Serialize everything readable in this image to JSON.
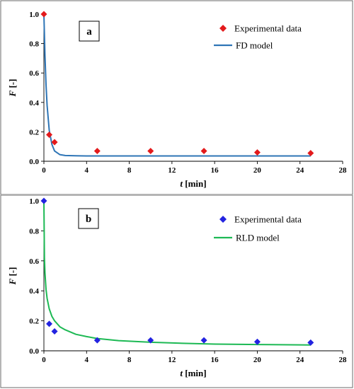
{
  "chart_data": [
    {
      "type": "scatter",
      "panel_label": "a",
      "xlabel_var": "t",
      "xlabel_unit": "[min]",
      "ylabel_var": "F",
      "ylabel_unit": "[-]",
      "xlim": [
        0,
        28
      ],
      "ylim": [
        0,
        1.0
      ],
      "xticks": [
        "0",
        "4",
        "8",
        "12",
        "16",
        "20",
        "24",
        "28"
      ],
      "yticks": [
        "0.0",
        "0.2",
        "0.4",
        "0.6",
        "0.8",
        "1.0"
      ],
      "grid": false,
      "legend_position": "top-right",
      "series": [
        {
          "name": "Experimental data",
          "kind": "scatter",
          "marker": "diamond",
          "color": "#e31a1c",
          "x": [
            0,
            0.5,
            1,
            5,
            10,
            15,
            20,
            25
          ],
          "y": [
            1.0,
            0.18,
            0.13,
            0.07,
            0.07,
            0.07,
            0.06,
            0.055
          ]
        },
        {
          "name": "FD model",
          "kind": "line",
          "color": "#2e75b6",
          "x": [
            0,
            0.1,
            0.2,
            0.3,
            0.5,
            0.75,
            1,
            1.5,
            2,
            3,
            4,
            6,
            10,
            15,
            20,
            25
          ],
          "y": [
            1.0,
            0.72,
            0.52,
            0.38,
            0.21,
            0.115,
            0.07,
            0.045,
            0.039,
            0.037,
            0.036,
            0.036,
            0.036,
            0.036,
            0.036,
            0.036
          ]
        }
      ]
    },
    {
      "type": "scatter",
      "panel_label": "b",
      "xlabel_var": "t",
      "xlabel_unit": "[min]",
      "ylabel_var": "F",
      "ylabel_unit": "[-]",
      "xlim": [
        0,
        28
      ],
      "ylim": [
        0,
        1.0
      ],
      "xticks": [
        "0",
        "4",
        "8",
        "12",
        "16",
        "20",
        "24",
        "28"
      ],
      "yticks": [
        "0.0",
        "0.2",
        "0.4",
        "0.6",
        "0.8",
        "1.0"
      ],
      "grid": false,
      "legend_position": "top-right",
      "series": [
        {
          "name": "Experimental data",
          "kind": "scatter",
          "marker": "diamond",
          "color": "#2323e0",
          "x": [
            0,
            0.5,
            1,
            5,
            10,
            15,
            20,
            25
          ],
          "y": [
            1.0,
            0.18,
            0.13,
            0.07,
            0.07,
            0.07,
            0.06,
            0.055
          ]
        },
        {
          "name": "RLD model",
          "kind": "line",
          "color": "#1db954",
          "x": [
            0,
            0.05,
            0.1,
            0.2,
            0.3,
            0.5,
            0.75,
            1,
            1.5,
            2,
            3,
            4,
            5,
            7,
            10,
            13,
            16,
            20,
            25
          ],
          "y": [
            1.0,
            0.62,
            0.52,
            0.41,
            0.35,
            0.28,
            0.23,
            0.2,
            0.16,
            0.14,
            0.11,
            0.095,
            0.082,
            0.068,
            0.057,
            0.05,
            0.045,
            0.042,
            0.039
          ]
        }
      ]
    }
  ]
}
